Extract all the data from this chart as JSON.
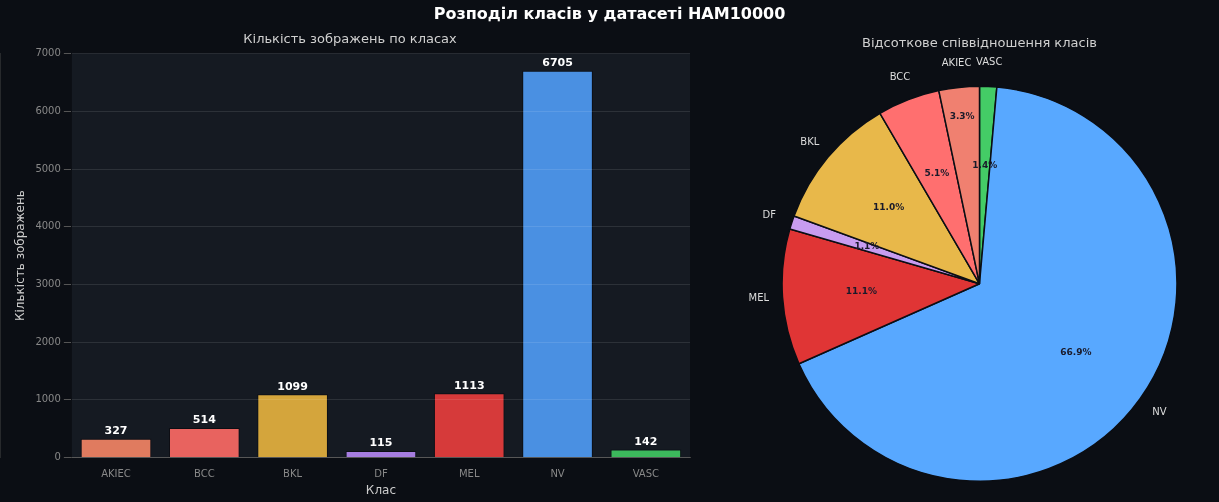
{
  "chart_data": [
    {
      "type": "bar",
      "title": "Кількість зображень по класах",
      "xlabel": "Клас",
      "ylabel": "Кількість зображень",
      "annotations": [
        "Розподіл класів у датасеті HAM10000"
      ],
      "categories": [
        "AKIEC",
        "BCC",
        "BKL",
        "DF",
        "MEL",
        "NV",
        "VASC"
      ],
      "values": [
        327,
        514,
        1099,
        115,
        1113,
        6705,
        142
      ],
      "colors": [
        "#e07b5f",
        "#e8635f",
        "#d4a53c",
        "#a67de0",
        "#d63a3a",
        "#4a90e2",
        "#3cb85c"
      ],
      "ylim": [
        0,
        7000
      ],
      "yticks": [
        0,
        1000,
        2000,
        3000,
        4000,
        5000,
        6000,
        7000
      ],
      "grid": "y",
      "data_labels": true,
      "legend": false
    },
    {
      "type": "pie",
      "title": "Відсоткове співвідношення класів",
      "categories": [
        "AKIEC",
        "BCC",
        "BKL",
        "DF",
        "MEL",
        "NV",
        "VASC"
      ],
      "values": [
        3.3,
        5.1,
        11.0,
        1.1,
        11.1,
        66.9,
        1.4
      ],
      "value_labels": [
        "3.3%",
        "5.1%",
        "11.0%",
        "1.1%",
        "11.1%",
        "66.9%",
        "1.4%"
      ],
      "colors": [
        "#f08070",
        "#ff6f6f",
        "#e8b84a",
        "#c89cf0",
        "#e03535",
        "#58a8ff",
        "#44cc66"
      ],
      "legend": false
    }
  ]
}
